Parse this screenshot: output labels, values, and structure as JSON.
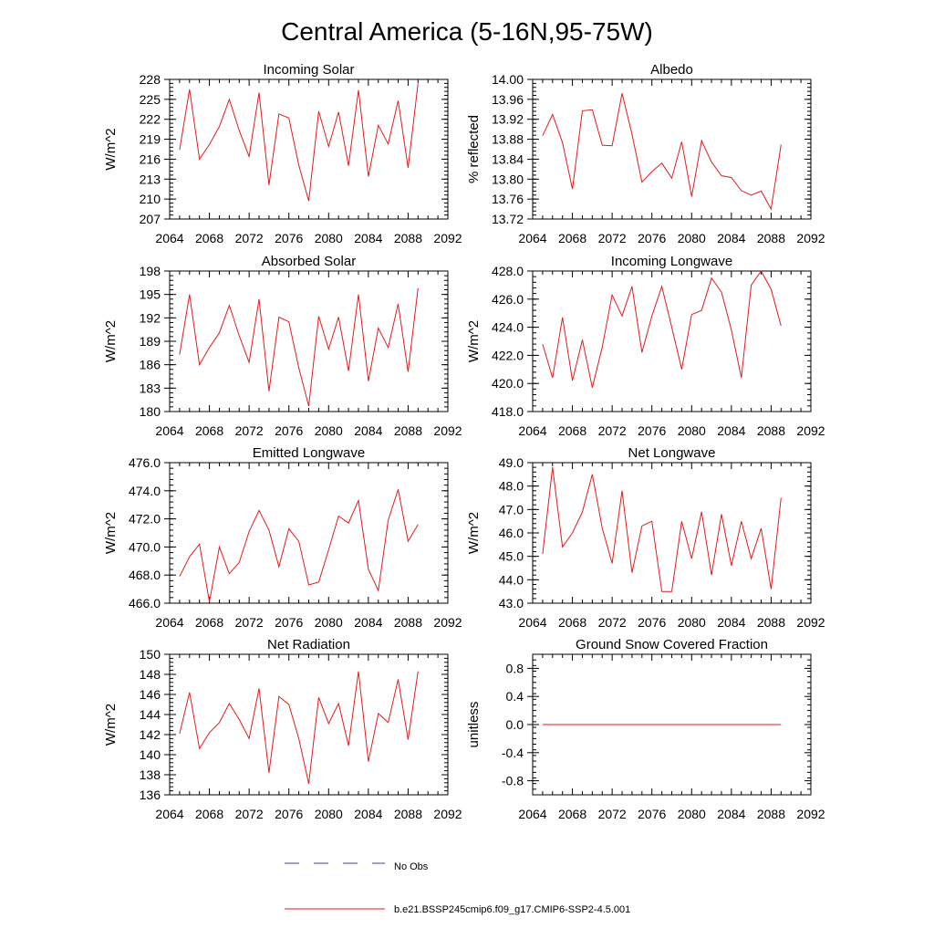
{
  "figure": {
    "title": "Central America (5-16N,95-75W)"
  },
  "legend": [
    {
      "label": "No Obs",
      "color": "#4040c0",
      "style": "dashed"
    },
    {
      "label": "b.e21.BSSP245cmip6.f09_g17.CMIP6-SSP2-4.5.001",
      "color": "#e41a1c",
      "style": "solid"
    }
  ],
  "chart_data": [
    {
      "type": "line",
      "title": "Incoming Solar",
      "ylabel": "W/m^2",
      "xlim": [
        2064,
        2092
      ],
      "ylim": [
        207,
        228
      ],
      "xticks": [
        "2064",
        "2068",
        "2072",
        "2076",
        "2080",
        "2084",
        "2088",
        "2092"
      ],
      "yticks": [
        "207",
        "210",
        "213",
        "216",
        "219",
        "222",
        "225",
        "228"
      ],
      "grid": false,
      "series": [
        {
          "color": "#e41a1c",
          "x": [
            2065,
            2066,
            2067,
            2068,
            2069,
            2070,
            2071,
            2072,
            2073,
            2074,
            2075,
            2076,
            2077,
            2078,
            2079,
            2080,
            2081,
            2082,
            2083,
            2084,
            2085,
            2086,
            2087,
            2088,
            2089
          ],
          "values": [
            217.4,
            226.5,
            216.0,
            218.2,
            220.9,
            225.0,
            220.3,
            216.4,
            226.0,
            212.1,
            222.8,
            222.2,
            215.1,
            209.7,
            223.2,
            217.9,
            223.1,
            215.0,
            226.4,
            213.4,
            221.1,
            218.3,
            224.8,
            214.7,
            227.4
          ]
        }
      ]
    },
    {
      "type": "line",
      "title": "Albedo",
      "ylabel": "% reflected",
      "xlim": [
        2064,
        2092
      ],
      "ylim": [
        13.72,
        14.0
      ],
      "xticks": [
        "2064",
        "2068",
        "2072",
        "2076",
        "2080",
        "2084",
        "2088",
        "2092"
      ],
      "yticks": [
        "13.72",
        "13.76",
        "13.80",
        "13.84",
        "13.88",
        "13.92",
        "13.96",
        "14.00"
      ],
      "grid": false,
      "series": [
        {
          "color": "#e41a1c",
          "x": [
            2065,
            2066,
            2067,
            2068,
            2069,
            2070,
            2071,
            2072,
            2073,
            2074,
            2075,
            2076,
            2077,
            2078,
            2079,
            2080,
            2081,
            2082,
            2083,
            2084,
            2085,
            2086,
            2087,
            2088,
            2089
          ],
          "values": [
            13.887,
            13.93,
            13.873,
            13.78,
            13.937,
            13.939,
            13.868,
            13.867,
            13.972,
            13.89,
            13.794,
            13.815,
            13.832,
            13.802,
            13.875,
            13.765,
            13.877,
            13.834,
            13.807,
            13.803,
            13.777,
            13.768,
            13.776,
            13.74,
            13.869
          ]
        }
      ]
    },
    {
      "type": "line",
      "title": "Absorbed Solar",
      "ylabel": "W/m^2",
      "xlim": [
        2064,
        2092
      ],
      "ylim": [
        180,
        198
      ],
      "xticks": [
        "2064",
        "2068",
        "2072",
        "2076",
        "2080",
        "2084",
        "2088",
        "2092"
      ],
      "yticks": [
        "180",
        "183",
        "186",
        "189",
        "192",
        "195",
        "198"
      ],
      "grid": false,
      "series": [
        {
          "color": "#e41a1c",
          "x": [
            2065,
            2066,
            2067,
            2068,
            2069,
            2070,
            2071,
            2072,
            2073,
            2074,
            2075,
            2076,
            2077,
            2078,
            2079,
            2080,
            2081,
            2082,
            2083,
            2084,
            2085,
            2086,
            2087,
            2088,
            2089
          ],
          "values": [
            187.3,
            195.0,
            186.0,
            188.2,
            190.1,
            193.6,
            189.7,
            186.3,
            194.4,
            182.6,
            192.1,
            191.5,
            185.6,
            180.7,
            192.2,
            188.0,
            192.1,
            185.2,
            195.0,
            183.9,
            190.7,
            188.2,
            193.8,
            185.1,
            195.8
          ]
        }
      ]
    },
    {
      "type": "line",
      "title": "Incoming Longwave",
      "ylabel": "W/m^2",
      "xlim": [
        2064,
        2092
      ],
      "ylim": [
        418.0,
        428.0
      ],
      "xticks": [
        "2064",
        "2068",
        "2072",
        "2076",
        "2080",
        "2084",
        "2088",
        "2092"
      ],
      "yticks": [
        "418.0",
        "420.0",
        "422.0",
        "424.0",
        "426.0",
        "428.0"
      ],
      "grid": false,
      "series": [
        {
          "color": "#e41a1c",
          "x": [
            2065,
            2066,
            2067,
            2068,
            2069,
            2070,
            2071,
            2072,
            2073,
            2074,
            2075,
            2076,
            2077,
            2078,
            2079,
            2080,
            2081,
            2082,
            2083,
            2084,
            2085,
            2086,
            2087,
            2088,
            2089
          ],
          "values": [
            422.8,
            420.4,
            424.7,
            420.2,
            423.1,
            419.7,
            422.6,
            426.3,
            424.8,
            426.9,
            422.2,
            424.8,
            426.9,
            424.0,
            421.0,
            424.9,
            425.2,
            427.5,
            426.5,
            423.8,
            420.4,
            427.0,
            428.0,
            426.7,
            424.1
          ]
        }
      ]
    },
    {
      "type": "line",
      "title": "Emitted Longwave",
      "ylabel": "W/m^2",
      "xlim": [
        2064,
        2092
      ],
      "ylim": [
        466.0,
        476.0
      ],
      "xticks": [
        "2064",
        "2068",
        "2072",
        "2076",
        "2080",
        "2084",
        "2088",
        "2092"
      ],
      "yticks": [
        "466.0",
        "468.0",
        "470.0",
        "472.0",
        "474.0",
        "476.0"
      ],
      "grid": false,
      "series": [
        {
          "color": "#e41a1c",
          "x": [
            2065,
            2066,
            2067,
            2068,
            2069,
            2070,
            2071,
            2072,
            2073,
            2074,
            2075,
            2076,
            2077,
            2078,
            2079,
            2080,
            2081,
            2082,
            2083,
            2084,
            2085,
            2086,
            2087,
            2088,
            2089
          ],
          "values": [
            467.9,
            469.3,
            470.2,
            466.1,
            470.0,
            468.1,
            468.9,
            471.1,
            472.6,
            471.2,
            468.6,
            471.3,
            470.4,
            467.3,
            467.5,
            469.8,
            472.2,
            471.7,
            473.3,
            468.4,
            466.9,
            471.9,
            474.1,
            470.4,
            471.6
          ]
        }
      ]
    },
    {
      "type": "line",
      "title": "Net Longwave",
      "ylabel": "W/m^2",
      "xlim": [
        2064,
        2092
      ],
      "ylim": [
        43.0,
        49.0
      ],
      "xticks": [
        "2064",
        "2068",
        "2072",
        "2076",
        "2080",
        "2084",
        "2088",
        "2092"
      ],
      "yticks": [
        "43.0",
        "44.0",
        "45.0",
        "46.0",
        "47.0",
        "48.0",
        "49.0"
      ],
      "grid": false,
      "series": [
        {
          "color": "#e41a1c",
          "x": [
            2065,
            2066,
            2067,
            2068,
            2069,
            2070,
            2071,
            2072,
            2073,
            2074,
            2075,
            2076,
            2077,
            2078,
            2079,
            2080,
            2081,
            2082,
            2083,
            2084,
            2085,
            2086,
            2087,
            2088,
            2089
          ],
          "values": [
            45.1,
            48.8,
            45.4,
            46.0,
            46.9,
            48.5,
            46.2,
            44.7,
            47.8,
            44.3,
            46.3,
            46.5,
            43.5,
            43.5,
            46.5,
            44.9,
            46.9,
            44.2,
            46.8,
            44.6,
            46.5,
            44.9,
            46.2,
            43.6,
            47.5
          ]
        }
      ]
    },
    {
      "type": "line",
      "title": "Net Radiation",
      "ylabel": "W/m^2",
      "xlim": [
        2064,
        2092
      ],
      "ylim": [
        136,
        150
      ],
      "xticks": [
        "2064",
        "2068",
        "2072",
        "2076",
        "2080",
        "2084",
        "2088",
        "2092"
      ],
      "yticks": [
        "136",
        "138",
        "140",
        "142",
        "144",
        "146",
        "148",
        "150"
      ],
      "grid": false,
      "series": [
        {
          "color": "#e41a1c",
          "x": [
            2065,
            2066,
            2067,
            2068,
            2069,
            2070,
            2071,
            2072,
            2073,
            2074,
            2075,
            2076,
            2077,
            2078,
            2079,
            2080,
            2081,
            2082,
            2083,
            2084,
            2085,
            2086,
            2087,
            2088,
            2089
          ],
          "values": [
            142.1,
            146.2,
            140.6,
            142.2,
            143.2,
            145.1,
            143.5,
            141.6,
            146.6,
            138.2,
            145.8,
            145.0,
            141.6,
            137.1,
            145.7,
            143.1,
            145.1,
            140.9,
            148.3,
            139.3,
            144.1,
            143.2,
            147.5,
            141.5,
            148.3
          ]
        }
      ]
    },
    {
      "type": "line",
      "title": "Ground Snow Covered Fraction",
      "ylabel": "unitless",
      "xlim": [
        2064,
        2092
      ],
      "ylim": [
        -1.0,
        1.0
      ],
      "xticks": [
        "2064",
        "2068",
        "2072",
        "2076",
        "2080",
        "2084",
        "2088",
        "2092"
      ],
      "yticks": [
        "-0.8",
        "-0.4",
        "0.0",
        "0.4",
        "0.8"
      ],
      "grid": false,
      "series": [
        {
          "color": "#e41a1c",
          "x": [
            2065,
            2089
          ],
          "values": [
            0.0,
            0.0
          ]
        }
      ]
    }
  ]
}
